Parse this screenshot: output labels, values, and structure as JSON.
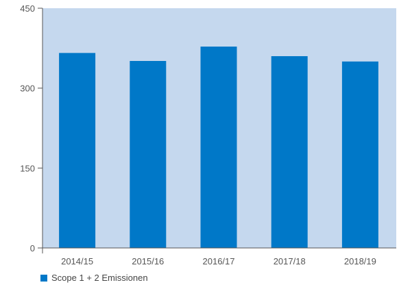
{
  "chart_data": {
    "type": "bar",
    "title": "",
    "xlabel": "",
    "ylabel": "",
    "categories": [
      "2014/15",
      "2015/16",
      "2016/17",
      "2017/18",
      "2018/19"
    ],
    "series": [
      {
        "name": "Scope 1 + 2 Emissionen",
        "values": [
          366,
          351,
          378,
          360,
          350
        ]
      }
    ],
    "ylim": [
      0,
      450
    ],
    "yticks": [
      0,
      150,
      300,
      450
    ],
    "grid": false,
    "legend": "bottom-left",
    "colors": {
      "plot_background": "#c5d8ee",
      "bar": "#0078c8",
      "axis": "#555555"
    }
  }
}
